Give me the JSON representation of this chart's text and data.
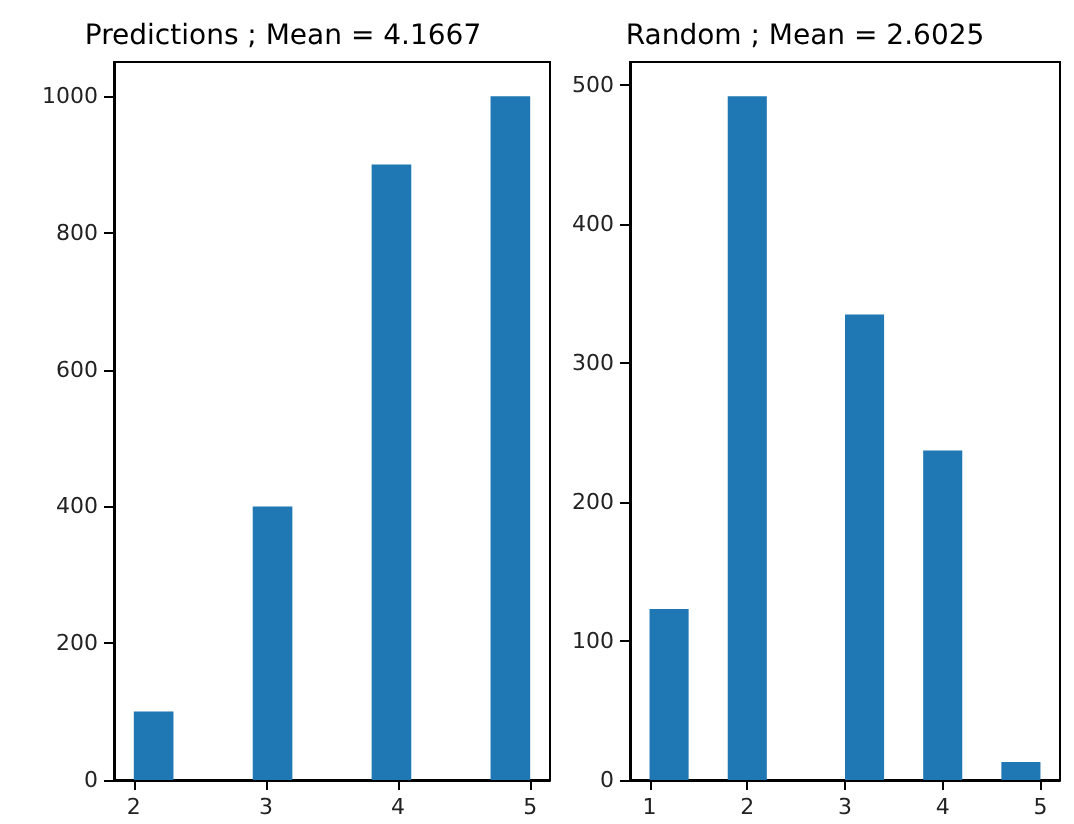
{
  "chart_data": [
    {
      "type": "histogram",
      "title": "Predictions ; Mean = 4.1667",
      "color": "#1f77b4",
      "bins": [
        2,
        2.3,
        2.6,
        2.9,
        3.2,
        3.5,
        3.8,
        4.1,
        4.4,
        4.7,
        5.0
      ],
      "values": [
        100,
        0,
        0,
        400,
        0,
        0,
        900,
        0,
        0,
        1000
      ],
      "xlim": [
        1.85,
        5.15
      ],
      "xticks": [
        2,
        3,
        4,
        5
      ],
      "ylim": [
        0,
        1050
      ],
      "yticks": [
        0,
        200,
        400,
        600,
        800,
        1000
      ],
      "grid": false
    },
    {
      "type": "histogram",
      "title": "Random ; Mean = 2.6025",
      "color": "#1f77b4",
      "bins": [
        1,
        1.4,
        1.8,
        2.2,
        2.6,
        3.0,
        3.4,
        3.8,
        4.2,
        4.6,
        5.0
      ],
      "values": [
        123,
        0,
        492,
        0,
        0,
        335,
        0,
        237,
        0,
        13
      ],
      "xlim": [
        0.8,
        5.2
      ],
      "xticks": [
        1,
        2,
        3,
        4,
        5
      ],
      "ylim": [
        0,
        516.6
      ],
      "yticks": [
        0,
        100,
        200,
        300,
        400,
        500
      ],
      "grid": false
    }
  ]
}
